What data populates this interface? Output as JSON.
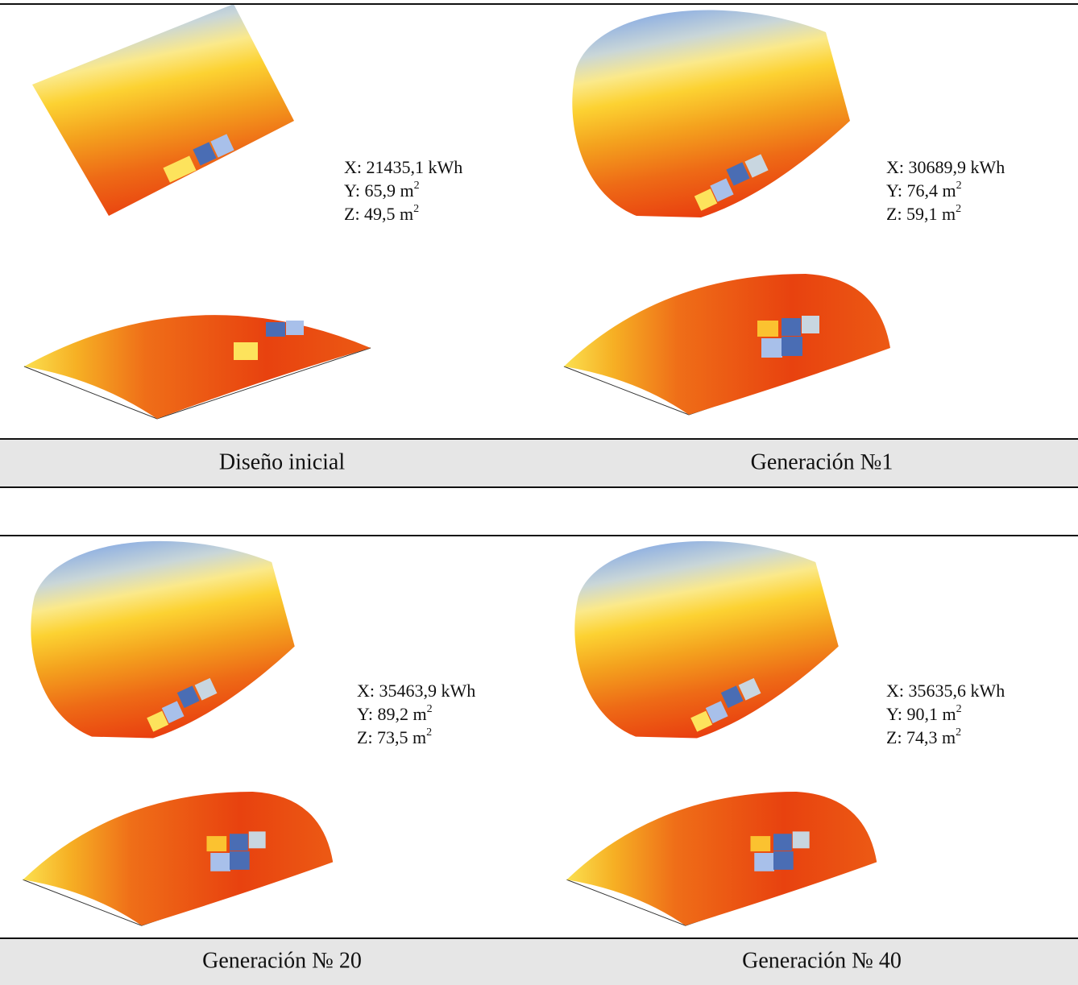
{
  "panels": [
    {
      "caption": "Diseño inicial",
      "lines": [
        {
          "text": "X: 21435,1 kWh"
        },
        {
          "text": "Y: 65,9 m",
          "sup": "2"
        },
        {
          "text": "Z: 49,5 m",
          "sup": "2"
        }
      ]
    },
    {
      "caption": "Generación №1",
      "lines": [
        {
          "text": "X: 30689,9 kWh"
        },
        {
          "text": "Y: 76,4 m",
          "sup": "2"
        },
        {
          "text": "Z: 59,1 m",
          "sup": "2"
        }
      ]
    },
    {
      "caption": "Generación № 20",
      "lines": [
        {
          "text": "X: 35463,9 kWh"
        },
        {
          "text": "Y: 89,2 m",
          "sup": "2"
        },
        {
          "text": "Z: 73,5 m",
          "sup": "2"
        }
      ]
    },
    {
      "caption": "Generación № 40",
      "lines": [
        {
          "text": "X: 35635,6 kWh"
        },
        {
          "text": "Y: 90,1 m",
          "sup": "2"
        },
        {
          "text": "Z: 74,3 m",
          "sup": "2"
        }
      ]
    }
  ]
}
